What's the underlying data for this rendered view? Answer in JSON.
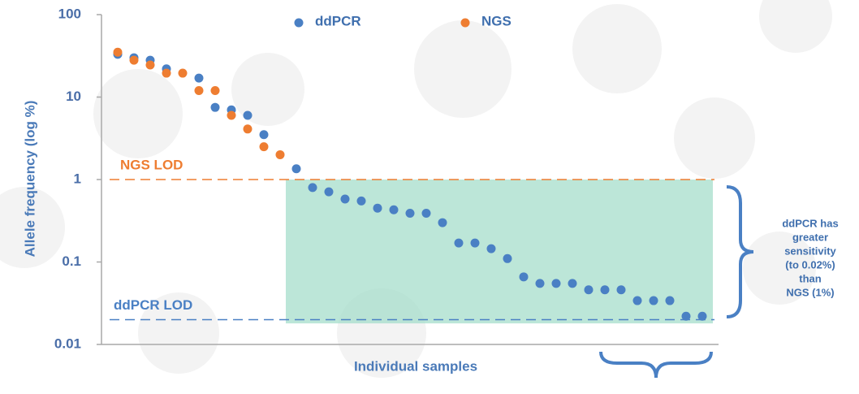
{
  "chart_data": {
    "type": "scatter",
    "y_label": "Allele frequency (log %)",
    "x_label": "Individual samples",
    "log_y": true,
    "ylim": [
      0.01,
      100
    ],
    "yticks": [
      100,
      10,
      1,
      0.1,
      0.01
    ],
    "xlim": [
      0,
      38
    ],
    "legend": "top",
    "series": [
      {
        "name": "ddPCR",
        "color": "#4a80c4",
        "x": [
          1,
          2,
          3,
          4,
          6,
          7,
          8,
          9,
          10,
          12,
          13,
          14,
          15,
          16,
          17,
          18,
          19,
          20,
          21,
          22,
          23,
          24,
          25,
          26,
          27,
          28,
          29,
          30,
          31,
          32,
          33,
          34,
          35,
          36,
          37
        ],
        "values": [
          33,
          30,
          28,
          22,
          17,
          7.5,
          7,
          6,
          3.5,
          1.35,
          0.8,
          0.71,
          0.58,
          0.55,
          0.45,
          0.43,
          0.39,
          0.39,
          0.3,
          0.17,
          0.17,
          0.145,
          0.11,
          0.066,
          0.055,
          0.055,
          0.055,
          0.046,
          0.046,
          0.046,
          0.034,
          0.034,
          0.034,
          0.022,
          0.022
        ]
      },
      {
        "name": "NGS",
        "color": "#ee7d31",
        "x": [
          1,
          2,
          3,
          4,
          5,
          6,
          7,
          8,
          9,
          10,
          11
        ],
        "values": [
          35,
          28,
          24.5,
          19.5,
          19.5,
          12,
          12,
          6,
          4.1,
          2.5,
          2
        ]
      }
    ],
    "reference_lines": [
      {
        "label": "NGS LOD",
        "value": 1,
        "color": "#ee7d31"
      },
      {
        "label": "ddPCR LOD",
        "value": 0.02,
        "color": "#4a80c4"
      }
    ],
    "shaded_region": {
      "x": [
        11.35,
        37.65
      ],
      "y": [
        0.018,
        1
      ],
      "color": "#9fdcc8"
    },
    "annotation_lines": [
      "ddPCR has",
      "greater",
      "sensitivity",
      "(to 0.02%)",
      "than",
      "NGS (1%)"
    ]
  }
}
